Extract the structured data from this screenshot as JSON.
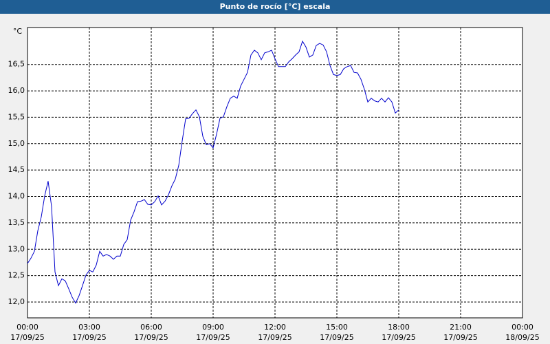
{
  "chart_data": {
    "type": "line",
    "title": "Punto de rocío [°C] escala",
    "y_label": "°C",
    "x": [
      "17/09/25 00:00",
      "17/09/25 00:10",
      "17/09/25 00:20",
      "17/09/25 00:30",
      "17/09/25 00:40",
      "17/09/25 00:50",
      "17/09/25 01:00",
      "17/09/25 01:10",
      "17/09/25 01:20",
      "17/09/25 01:30",
      "17/09/25 01:40",
      "17/09/25 01:50",
      "17/09/25 02:00",
      "17/09/25 02:10",
      "17/09/25 02:20",
      "17/09/25 02:30",
      "17/09/25 02:40",
      "17/09/25 02:50",
      "17/09/25 03:00",
      "17/09/25 03:10",
      "17/09/25 03:20",
      "17/09/25 03:30",
      "17/09/25 03:40",
      "17/09/25 03:50",
      "17/09/25 04:00",
      "17/09/25 04:10",
      "17/09/25 04:20",
      "17/09/25 04:30",
      "17/09/25 04:40",
      "17/09/25 04:50",
      "17/09/25 05:00",
      "17/09/25 05:10",
      "17/09/25 05:20",
      "17/09/25 05:30",
      "17/09/25 05:40",
      "17/09/25 05:50",
      "17/09/25 06:00",
      "17/09/25 06:10",
      "17/09/25 06:20",
      "17/09/25 06:30",
      "17/09/25 06:40",
      "17/09/25 06:50",
      "17/09/25 07:00",
      "17/09/25 07:10",
      "17/09/25 07:20",
      "17/09/25 07:30",
      "17/09/25 07:40",
      "17/09/25 07:50",
      "17/09/25 08:00",
      "17/09/25 08:10",
      "17/09/25 08:20",
      "17/09/25 08:30",
      "17/09/25 08:40",
      "17/09/25 08:50",
      "17/09/25 09:00",
      "17/09/25 09:10",
      "17/09/25 09:20",
      "17/09/25 09:30",
      "17/09/25 09:40",
      "17/09/25 09:50",
      "17/09/25 10:00",
      "17/09/25 10:10",
      "17/09/25 10:20",
      "17/09/25 10:30",
      "17/09/25 10:40",
      "17/09/25 10:50",
      "17/09/25 11:00",
      "17/09/25 11:10",
      "17/09/25 11:20",
      "17/09/25 11:30",
      "17/09/25 11:40",
      "17/09/25 11:50",
      "17/09/25 12:00",
      "17/09/25 12:10",
      "17/09/25 12:20",
      "17/09/25 12:30",
      "17/09/25 12:40",
      "17/09/25 12:50",
      "17/09/25 13:00",
      "17/09/25 13:10",
      "17/09/25 13:20",
      "17/09/25 13:30",
      "17/09/25 13:40",
      "17/09/25 13:50",
      "17/09/25 14:00",
      "17/09/25 14:10",
      "17/09/25 14:20",
      "17/09/25 14:30",
      "17/09/25 14:40",
      "17/09/25 14:50",
      "17/09/25 15:00",
      "17/09/25 15:10",
      "17/09/25 15:20",
      "17/09/25 15:30",
      "17/09/25 15:40",
      "17/09/25 15:50",
      "17/09/25 16:00",
      "17/09/25 16:10",
      "17/09/25 16:20",
      "17/09/25 16:30",
      "17/09/25 16:40",
      "17/09/25 16:50",
      "17/09/25 17:00",
      "17/09/25 17:10",
      "17/09/25 17:20",
      "17/09/25 17:30",
      "17/09/25 17:40",
      "17/09/25 17:50",
      "17/09/25 18:00"
    ],
    "series": [
      {
        "color": "#0000cc",
        "values": [
          12.73,
          12.83,
          12.96,
          13.35,
          13.61,
          14.01,
          14.29,
          13.81,
          12.57,
          12.31,
          12.44,
          12.4,
          12.25,
          12.09,
          11.98,
          12.12,
          12.31,
          12.51,
          12.6,
          12.57,
          12.7,
          12.96,
          12.87,
          12.9,
          12.87,
          12.81,
          12.87,
          12.87,
          13.09,
          13.18,
          13.55,
          13.71,
          13.9,
          13.91,
          13.94,
          13.85,
          13.84,
          13.9,
          14.01,
          13.84,
          13.91,
          14.03,
          14.2,
          14.33,
          14.59,
          15.05,
          15.47,
          15.48,
          15.57,
          15.64,
          15.51,
          15.14,
          14.98,
          15.0,
          14.92,
          15.18,
          15.48,
          15.51,
          15.7,
          15.86,
          15.9,
          15.86,
          16.09,
          16.22,
          16.35,
          16.68,
          16.77,
          16.72,
          16.59,
          16.72,
          16.74,
          16.77,
          16.61,
          16.46,
          16.46,
          16.46,
          16.55,
          16.61,
          16.68,
          16.74,
          16.94,
          16.83,
          16.64,
          16.68,
          16.86,
          16.9,
          16.87,
          16.74,
          16.48,
          16.31,
          16.29,
          16.31,
          16.42,
          16.46,
          16.48,
          16.35,
          16.34,
          16.22,
          16.03,
          15.79,
          15.86,
          15.81,
          15.79,
          15.86,
          15.79,
          15.87,
          15.79,
          15.58,
          15.64
        ]
      }
    ],
    "xlim": [
      "17/09/25 00:00",
      "18/09/25 00:00"
    ],
    "xticks": [
      {
        "value": "17/09/25 00:00",
        "label": [
          "00:00",
          "17/09/25"
        ]
      },
      {
        "value": "17/09/25 03:00",
        "label": [
          "03:00",
          "17/09/25"
        ]
      },
      {
        "value": "17/09/25 06:00",
        "label": [
          "06:00",
          "17/09/25"
        ]
      },
      {
        "value": "17/09/25 09:00",
        "label": [
          "09:00",
          "17/09/25"
        ]
      },
      {
        "value": "17/09/25 12:00",
        "label": [
          "12:00",
          "17/09/25"
        ]
      },
      {
        "value": "17/09/25 15:00",
        "label": [
          "15:00",
          "17/09/25"
        ]
      },
      {
        "value": "17/09/25 18:00",
        "label": [
          "18:00",
          "17/09/25"
        ]
      },
      {
        "value": "17/09/25 21:00",
        "label": [
          "21:00",
          "17/09/25"
        ]
      },
      {
        "value": "18/09/25 00:00",
        "label": [
          "00:00",
          "18/09/25"
        ]
      }
    ],
    "ylim": [
      11.7,
      17.2
    ],
    "yticks": [
      {
        "value": 12,
        "label": "12,0"
      },
      {
        "value": 12.5,
        "label": "12,5"
      },
      {
        "value": 13,
        "label": "13,0"
      },
      {
        "value": 13.5,
        "label": "13,5"
      },
      {
        "value": 14,
        "label": "14,0"
      },
      {
        "value": 14.5,
        "label": "14,5"
      },
      {
        "value": 15,
        "label": "15,0"
      },
      {
        "value": 15.5,
        "label": "15,5"
      },
      {
        "value": 16,
        "label": "16,0"
      },
      {
        "value": 16.5,
        "label": "16,5"
      }
    ],
    "grid": true
  }
}
